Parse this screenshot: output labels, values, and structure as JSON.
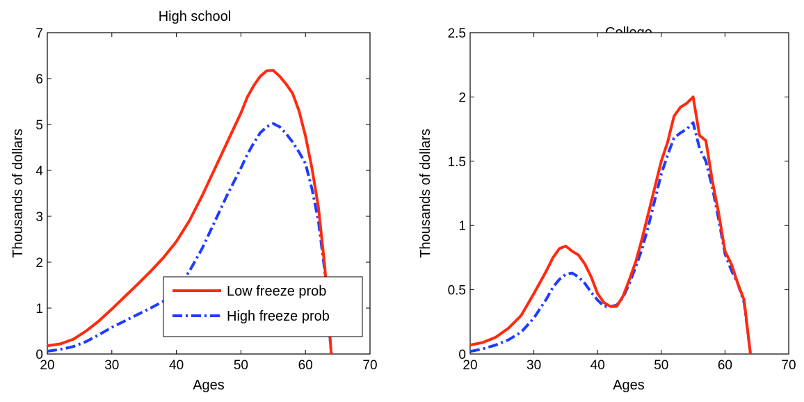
{
  "colors": {
    "low": "#ff2a0f",
    "high": "#1f3cff"
  },
  "legend": {
    "low_label": "Low freeze prob",
    "high_label": "High freeze prob"
  },
  "chart_data": [
    {
      "type": "line",
      "title": "High school",
      "xlabel": "Ages",
      "ylabel": "Thousands of dollars",
      "xlim": [
        20,
        70
      ],
      "ylim": [
        0,
        7
      ],
      "xticks": [
        20,
        30,
        40,
        50,
        60,
        70
      ],
      "yticks": [
        0,
        1,
        2,
        3,
        4,
        5,
        6,
        7
      ],
      "ytick_labels": [
        "0",
        "1",
        "2",
        "3",
        "4",
        "5",
        "6",
        "7"
      ],
      "legend_position": "bottom-right",
      "series": [
        {
          "name": "Low freeze prob",
          "style": "solid",
          "x": [
            20,
            22,
            24,
            26,
            28,
            30,
            32,
            34,
            36,
            38,
            40,
            42,
            44,
            46,
            48,
            50,
            51,
            52,
            53,
            54,
            55,
            56,
            57,
            58,
            59,
            60,
            61,
            62,
            63,
            64
          ],
          "y": [
            0.18,
            0.22,
            0.32,
            0.5,
            0.72,
            0.98,
            1.25,
            1.52,
            1.8,
            2.1,
            2.45,
            2.9,
            3.45,
            4.05,
            4.65,
            5.25,
            5.6,
            5.85,
            6.05,
            6.17,
            6.18,
            6.05,
            5.88,
            5.68,
            5.3,
            4.75,
            4.05,
            3.2,
            1.9,
            0.0
          ]
        },
        {
          "name": "High freeze prob",
          "style": "dashdot",
          "x": [
            20,
            22,
            24,
            26,
            28,
            30,
            32,
            34,
            36,
            38,
            40,
            42,
            44,
            46,
            48,
            50,
            51,
            52,
            53,
            54,
            55,
            56,
            57,
            58,
            59,
            60,
            61,
            62,
            63,
            64
          ],
          "y": [
            0.06,
            0.1,
            0.16,
            0.27,
            0.42,
            0.58,
            0.72,
            0.86,
            1.0,
            1.15,
            1.4,
            1.8,
            2.3,
            2.9,
            3.5,
            4.05,
            4.35,
            4.6,
            4.82,
            4.95,
            5.02,
            4.95,
            4.8,
            4.62,
            4.4,
            4.15,
            3.6,
            2.9,
            1.8,
            0.0
          ]
        }
      ]
    },
    {
      "type": "line",
      "title": "College",
      "xlabel": "Ages",
      "ylabel": "Thousands of dollars",
      "xlim": [
        20,
        70
      ],
      "ylim": [
        0,
        2.5
      ],
      "xticks": [
        20,
        30,
        40,
        50,
        60,
        70
      ],
      "yticks": [
        0,
        0.5,
        1,
        1.5,
        2,
        2.5
      ],
      "ytick_labels": [
        "0",
        "0.5",
        "1",
        "1.5",
        "2",
        "2.5"
      ],
      "series": [
        {
          "name": "Low freeze prob",
          "style": "solid",
          "x": [
            20,
            22,
            24,
            26,
            28,
            30,
            32,
            33,
            34,
            35,
            36,
            37,
            38,
            39,
            40,
            41,
            42,
            43,
            44,
            45,
            46,
            47,
            48,
            49,
            50,
            51,
            52,
            53,
            54,
            55,
            56,
            57,
            58,
            59,
            60,
            61,
            62,
            63,
            64
          ],
          "y": [
            0.07,
            0.09,
            0.13,
            0.2,
            0.3,
            0.47,
            0.65,
            0.75,
            0.82,
            0.84,
            0.8,
            0.77,
            0.7,
            0.6,
            0.47,
            0.4,
            0.37,
            0.37,
            0.45,
            0.58,
            0.72,
            0.9,
            1.1,
            1.3,
            1.5,
            1.65,
            1.85,
            1.92,
            1.95,
            2.0,
            1.7,
            1.66,
            1.35,
            1.1,
            0.8,
            0.7,
            0.55,
            0.42,
            0.0
          ]
        },
        {
          "name": "High freeze prob",
          "style": "dashdot",
          "x": [
            20,
            22,
            24,
            26,
            28,
            30,
            32,
            33,
            34,
            35,
            36,
            37,
            38,
            39,
            40,
            41,
            42,
            43,
            44,
            45,
            46,
            47,
            48,
            49,
            50,
            51,
            52,
            53,
            54,
            55,
            56,
            57,
            58,
            59,
            60,
            61,
            62,
            63,
            64
          ],
          "y": [
            0.02,
            0.04,
            0.07,
            0.11,
            0.17,
            0.28,
            0.43,
            0.52,
            0.58,
            0.62,
            0.63,
            0.6,
            0.55,
            0.48,
            0.42,
            0.37,
            0.37,
            0.38,
            0.44,
            0.55,
            0.68,
            0.82,
            1.0,
            1.2,
            1.4,
            1.55,
            1.68,
            1.72,
            1.75,
            1.8,
            1.6,
            1.5,
            1.3,
            1.05,
            0.78,
            0.65,
            0.55,
            0.4,
            0.0
          ]
        }
      ]
    }
  ]
}
